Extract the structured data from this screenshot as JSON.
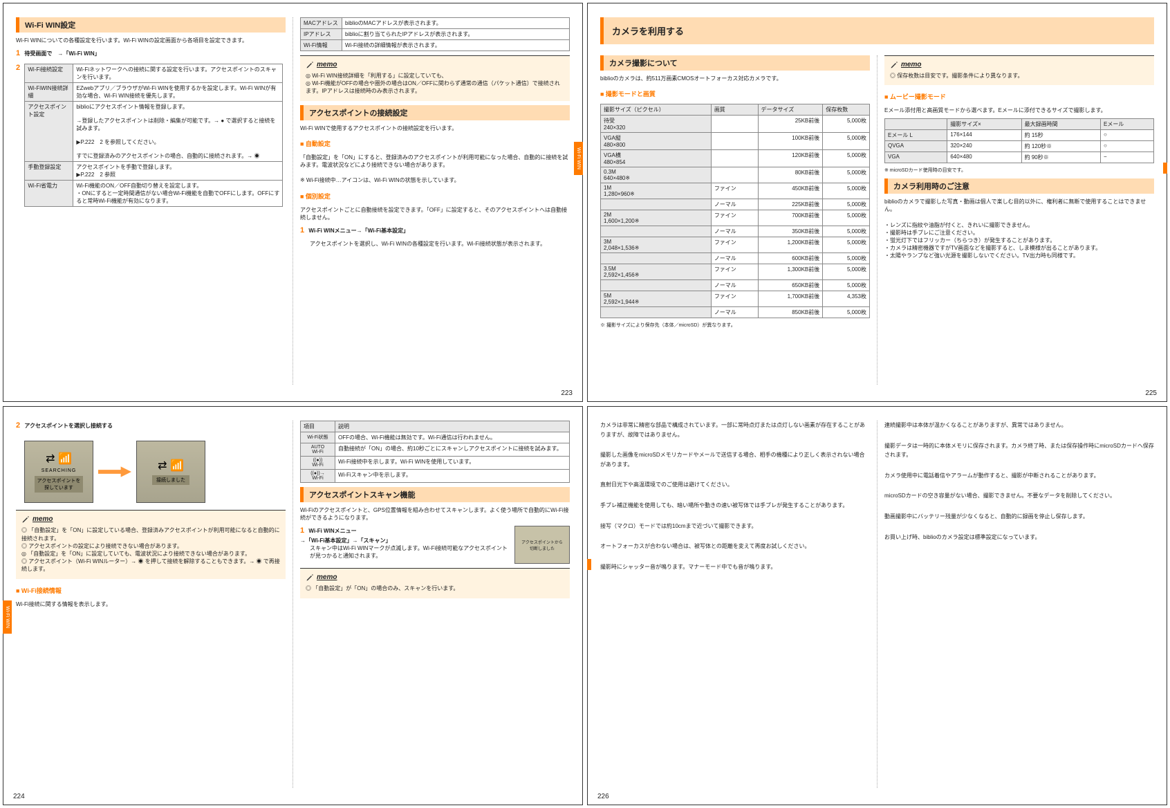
{
  "p223": {
    "title": "Wi-Fi WIN設定",
    "intro": "Wi-Fi WINについての各種設定を行います。Wi-Fi WINの設定画面から各項目を設定できます。",
    "step1": "待受画面で　→「Wi-Fi WIN」",
    "tbl1": [
      [
        "Wi-Fi接続設定",
        "Wi-Fiネットワークへの接続に関する設定を行います。アクセスポイントのスキャンを行います。"
      ],
      [
        "Wi-FiWIN接続詳細",
        "EZwebアプリ／ブラウザがWi-Fi WINを使用するかを設定します。Wi-Fi WINが有効な場合、Wi-Fi WIN接続を優先します。"
      ],
      [
        "アクセスポイント設定",
        "biblioにアクセスポイント情報を登録します。\n\n→登録したアクセスポイントは削除・編集が可能です。→ ● で選択すると接続を試みます。\n\n▶P.222　2 を参照してください。\n\nすでに登録済みのアクセスポイントの場合、自動的に接続されます。→ ◉"
      ],
      [
        "手動登録設定",
        "アクセスポイントを手動で登録します。\n▶P.222　2 参照"
      ],
      [
        "Wi-Fi省電力",
        "Wi-Fi機能のON／OFF自動切り替えを設定します。\n・ONにすると一定時間通信がない場合Wi-Fi機能を自動でOFFにします。OFFにすると常時Wi-Fi機能が有効になります。"
      ]
    ],
    "tbl2": [
      [
        "MACアドレス",
        "biblioのMACアドレスが表示されます。"
      ],
      [
        "IPアドレス",
        "biblioに割り当てられたIPアドレスが表示されます。"
      ],
      [
        "Wi-Fi情報",
        "Wi-Fi接続の詳細情報が表示されます。"
      ]
    ],
    "memo": "◎ Wi-Fi WIN接続詳細を「利用する」に設定していても、\n◎ Wi-Fi機能がOFFの場合や圏外の場合はON／OFFに関わらず通常の通信（パケット通信）で接続されます。IPアドレスは接続時のみ表示されます。",
    "h2": "アクセスポイントの接続設定",
    "h2_txt": "Wi-Fi WINで使用するアクセスポイントの接続設定を行います。",
    "sub1": "■ 自動設定",
    "sub1_txt": "「自動設定」を「ON」にすると、登録済みのアクセスポイントが利用可能になった場合、自動的に接続を試みます。電波状況などにより接続できない場合があります。\n\n※ Wi-Fi接続中…アイコンは、Wi-Fi WINの状態を示しています。",
    "sub2": "■ 個別設定",
    "sub2_txt": "アクセスポイントごとに自動接続を設定できます。「OFF」に設定すると、そのアクセスポイントへは自動接続しません。",
    "step1b": "Wi-Fi WINメニュー→「Wi-Fi基本設定」",
    "step1b_txt": "アクセスポイントを選択し、Wi-Fi WINの各種設定を行います。Wi-Fi接続状態が表示されます。",
    "pgnum": "223",
    "tab": "Wi-Fi WIN"
  },
  "p224": {
    "step2": "アクセスポイントを選択し接続する",
    "shot1_line1": "SEARCHING",
    "shot1_line2": "アクセスポイントを\n探しています",
    "shot2_line": "接続しました",
    "memo1": "◎ 「自動設定」を「ON」に設定している場合、登録済みアクセスポイントが利用可能になると自動的に接続されます。\n◎ アクセスポイントの設定により接続できない場合があります。\n◎ 「自動設定」を「ON」に設定していても、電波状況により接続できない場合があります。\n◎ アクセスポイント（Wi-Fi WINルーター）→ ◉ を押して接続を解除することもできます。→ ◉ で再接続します。",
    "sub": "■ Wi-Fi接続情報",
    "sub_txt": "Wi-Fi接続に関する情報を表示します。",
    "tbl": [
      [
        "項目",
        "説明"
      ],
      [
        "Wi-Fi状態",
        "OFFの場合、Wi-Fi機能は無効です。Wi-Fi通信は行われません。"
      ],
      [
        "AUTO\nWi-Fi",
        "自動接続が「ON」の場合、約10秒ごとにスキャンしアクセスポイントに接続を試みます。"
      ],
      [
        "((●))\nWi-Fi",
        "Wi-Fi接続中を示します。Wi-Fi WINを使用しています。"
      ],
      [
        "((●))→\nWi-Fi",
        "Wi-Fiスキャン中を示します。"
      ]
    ],
    "h2": "アクセスポイントスキャン機能",
    "h2_txt": "Wi-Fiのアクセスポイントと、GPS位置情報を組み合わせてスキャンします。よく使う場所で自動的にWi-Fi接続ができるようになります。",
    "step1": "Wi-Fi WINメニュー\n→「Wi-Fi基本設定」→「スキャン」",
    "step1_txt": "スキャン中はWi-Fi WINマークが点滅します。Wi-Fi接続可能なアクセスポイントが見つかると通知されます。",
    "memo2": "◎ 「自動設定」が「ON」の場合のみ、スキャンを行います。",
    "mini": "アクセスポイントから\n切断しました",
    "pgnum": "224",
    "tab": "Wi-Fi WIN"
  },
  "p225": {
    "banner": "カメラを利用する",
    "h1": "カメラ撮影について",
    "h1_txt": "biblioのカメラは、約511万画素CMOSオートフォーカス対応カメラです。",
    "sub1": "■ 撮影モードと画質",
    "tbl1_head": [
      "撮影サイズ（ピクセル）",
      "画質",
      "データサイズ",
      "保存枚数"
    ],
    "tbl1": [
      [
        "待受\n240×320",
        "",
        "25KB前後",
        "5,000枚"
      ],
      [
        "VGA縦\n480×800",
        "",
        "100KB前後",
        "5,000枚"
      ],
      [
        "VGA横\n480×854",
        "",
        "120KB前後",
        "5,000枚"
      ],
      [
        "0.3M\n640×480※",
        "",
        "80KB前後",
        "5,000枚"
      ],
      [
        "1M\n1,280×960※",
        "ファイン",
        "450KB前後",
        "5,000枚"
      ],
      [
        "",
        "ノーマル",
        "225KB前後",
        "5,000枚"
      ],
      [
        "2M\n1,600×1,200※",
        "ファイン",
        "700KB前後",
        "5,000枚"
      ],
      [
        "",
        "ノーマル",
        "350KB前後",
        "5,000枚"
      ],
      [
        "3M\n2,048×1,536※",
        "ファイン",
        "1,200KB前後",
        "5,000枚"
      ],
      [
        "",
        "ノーマル",
        "600KB前後",
        "5,000枚"
      ],
      [
        "3.5M\n2,592×1,456※",
        "ファイン",
        "1,300KB前後",
        "5,000枚"
      ],
      [
        "",
        "ノーマル",
        "650KB前後",
        "5,000枚"
      ],
      [
        "5M\n2,592×1,944※",
        "ファイン",
        "1,700KB前後",
        "4,353枚"
      ],
      [
        "",
        "ノーマル",
        "850KB前後",
        "5,000枚"
      ]
    ],
    "foot1": "※ 撮影サイズにより保存先（本体／microSD）が異なります。",
    "memo": "◎ 保存枚数は目安です。撮影条件により異なります。",
    "sub2": "■ ムービー撮影モード",
    "sub2_txt": "Eメール添付用と高画質モードから選べます。Eメールに添付できるサイズで撮影します。",
    "tbl2_head": [
      "",
      "撮影サイズ×",
      "最大録画時間",
      "Eメール"
    ],
    "tbl2": [
      [
        "Eメール L",
        "176×144",
        "約 15秒",
        "○"
      ],
      [
        "QVGA",
        "320×240",
        "約 120秒※",
        "○"
      ],
      [
        "VGA",
        "640×480",
        "約 90秒※",
        "−"
      ]
    ],
    "foot2": "※ microSDカード使用時の目安です。",
    "h2": "カメラ利用時のご注意",
    "h2_txt": "biblioのカメラで撮影した写真・動画は個人で楽しむ目的以外に、権利者に無断で使用することはできません。\n\n・レンズに指紋や油脂が付くと、きれいに撮影できません。\n・撮影時は手ブレにご注意ください。\n・蛍光灯下ではフリッカー（ちらつき）が発生することがあります。\n・カメラは精密機器ですがTV画面などを撮影すると、しま模様が出ることがあります。\n・太陽やランプなど強い光源を撮影しないでください。TV出力時も同様です。",
    "pgnum": "225"
  },
  "p226": {
    "blocks": [
      "カメラは非常に精密な部品で構成されています。一部に常時点灯または点灯しない画素が存在することがありますが、故障ではありません。",
      "撮影した画像をmicroSDメモリカードやメールで送信する場合、相手の機種により正しく表示されない場合があります。",
      "直射日光下や高温環境でのご使用は避けてください。",
      "手ブレ補正機能を使用しても、暗い場所や動きの速い被写体では手ブレが発生することがあります。",
      "接写（マクロ）モードでは約10cmまで近づいて撮影できます。",
      "オートフォーカスが合わない場合は、被写体との距離を変えて再度お試しください。",
      "撮影時にシャッター音が鳴ります。マナーモード中でも音が鳴ります。",
      "連続撮影中は本体が温かくなることがありますが、異常ではありません。",
      "撮影データは一時的に本体メモリに保存されます。カメラ終了時、または保存操作時にmicroSDカードへ保存されます。",
      "カメラ使用中に電話着信やアラームが動作すると、撮影が中断されることがあります。",
      "microSDカードの空き容量がない場合、撮影できません。不要なデータを削除してください。",
      "動画撮影中にバッテリー残量が少なくなると、自動的に録画を停止し保存します。",
      "お買い上げ時、biblioのカメラ設定は標準設定になっています。"
    ],
    "pgnum": "226"
  }
}
